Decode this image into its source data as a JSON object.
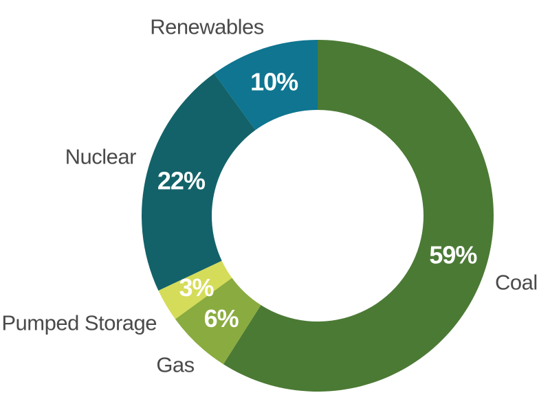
{
  "chart_data": {
    "type": "pie",
    "style": "donut",
    "title": "",
    "legend": "none",
    "categories": [
      "Coal",
      "Gas",
      "Pumped Storage",
      "Nuclear",
      "Renewables"
    ],
    "values": [
      59,
      6,
      3,
      22,
      10
    ],
    "value_labels": [
      "59%",
      "6%",
      "3%",
      "22%",
      "10%"
    ],
    "colors": [
      "#4b7a35",
      "#8aab3f",
      "#d5dc59",
      "#136269",
      "#0f7590"
    ]
  }
}
